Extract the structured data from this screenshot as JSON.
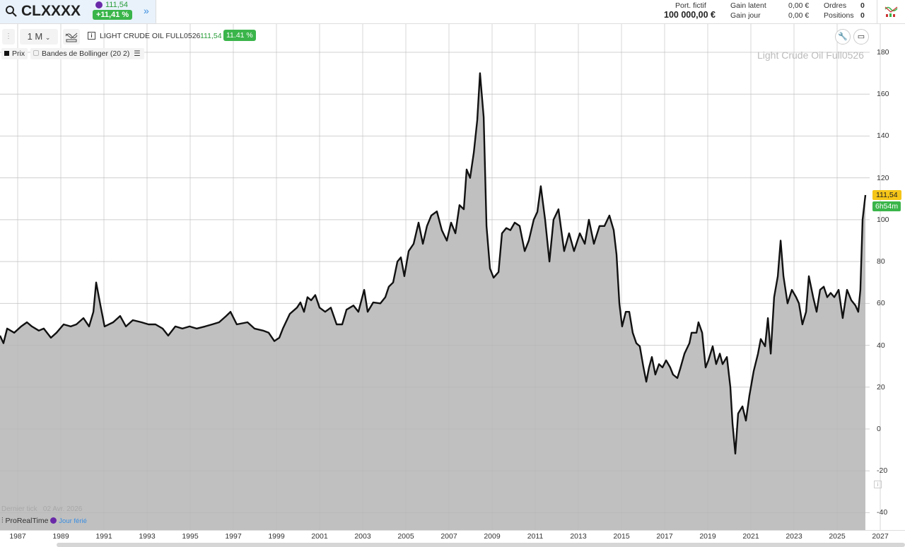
{
  "header": {
    "symbol": "CLXXXX",
    "price": "111,54",
    "change": "+11,41 %",
    "portfolio_label": "Port. fictif",
    "portfolio_value": "100 000,00 €",
    "gain_latent_label": "Gain latent",
    "gain_latent_value": "0,00 €",
    "gain_jour_label": "Gain jour",
    "gain_jour_value": "0,00 €",
    "ordres_label": "Ordres",
    "ordres_value": "0",
    "positions_label": "Positions",
    "positions_value": "0"
  },
  "chart_toolbar": {
    "period": "1 M",
    "instrument": "LIGHT CRUDE OIL FULL0526",
    "price": "111,54",
    "change": "11.41 %"
  },
  "legend": {
    "items": [
      "Prix",
      "Bandes de Bollinger (20 2)"
    ]
  },
  "watermark": "Light Crude Oil Full0526",
  "footer": {
    "last_tick_label": "Dernier tick",
    "last_tick_date": "02 Avr. 2026",
    "brand": "ProRealTime",
    "holiday": "Jour férié"
  },
  "price_tag": {
    "value": "111,54",
    "countdown": "6h54m"
  },
  "colors": {
    "line": "#111111",
    "fill": "#c0c0c0",
    "up": "#3ab54a",
    "tag": "#f5c518"
  },
  "chart_data": {
    "type": "area",
    "title": "Light Crude Oil Full0526",
    "xlim": [
      1986.18,
      2027.3
    ],
    "ylim": [
      -47,
      191
    ],
    "x_ticks": [
      "1987",
      "1989",
      "1991",
      "1993",
      "1995",
      "1997",
      "1999",
      "2001",
      "2003",
      "2005",
      "2007",
      "2009",
      "2011",
      "2013",
      "2015",
      "2017",
      "2019",
      "2021",
      "2023",
      "2025",
      "2027"
    ],
    "y_ticks": [
      180,
      160,
      140,
      120,
      100,
      80,
      60,
      40,
      20,
      0,
      -20,
      -40
    ],
    "grid": true,
    "points": [
      [
        1986.18,
        44.6
      ],
      [
        1986.34,
        41
      ],
      [
        1986.51,
        48
      ],
      [
        1986.84,
        46
      ],
      [
        1987.16,
        49
      ],
      [
        1987.43,
        51
      ],
      [
        1987.66,
        49
      ],
      [
        1987.98,
        47
      ],
      [
        1988.21,
        48
      ],
      [
        1988.54,
        43.6
      ],
      [
        1988.8,
        46
      ],
      [
        1989.13,
        50
      ],
      [
        1989.46,
        49
      ],
      [
        1989.72,
        50
      ],
      [
        1990.05,
        53
      ],
      [
        1990.31,
        49
      ],
      [
        1990.51,
        56
      ],
      [
        1990.64,
        70
      ],
      [
        1990.84,
        59
      ],
      [
        1991.03,
        49
      ],
      [
        1991.43,
        51
      ],
      [
        1991.75,
        54
      ],
      [
        1992.02,
        49
      ],
      [
        1992.34,
        52
      ],
      [
        1992.74,
        51
      ],
      [
        1993.07,
        50
      ],
      [
        1993.39,
        50
      ],
      [
        1993.72,
        48
      ],
      [
        1993.98,
        44.6
      ],
      [
        1994.31,
        49
      ],
      [
        1994.64,
        48
      ],
      [
        1994.97,
        49
      ],
      [
        1995.3,
        48
      ],
      [
        1995.69,
        49
      ],
      [
        1996.02,
        50
      ],
      [
        1996.34,
        51
      ],
      [
        1996.67,
        54
      ],
      [
        1996.87,
        56
      ],
      [
        1997.16,
        50
      ],
      [
        1997.66,
        51
      ],
      [
        1997.98,
        48
      ],
      [
        1998.38,
        47
      ],
      [
        1998.64,
        46
      ],
      [
        1998.9,
        42
      ],
      [
        1999.13,
        43.6
      ],
      [
        1999.3,
        48
      ],
      [
        1999.62,
        55
      ],
      [
        1999.95,
        58
      ],
      [
        2000.11,
        60.5
      ],
      [
        2000.28,
        56
      ],
      [
        2000.44,
        63
      ],
      [
        2000.61,
        61.5
      ],
      [
        2000.8,
        64
      ],
      [
        2001.0,
        58
      ],
      [
        2001.26,
        56
      ],
      [
        2001.52,
        58
      ],
      [
        2001.79,
        50
      ],
      [
        2002.05,
        50
      ],
      [
        2002.25,
        57
      ],
      [
        2002.57,
        59
      ],
      [
        2002.8,
        56
      ],
      [
        2003.07,
        66.5
      ],
      [
        2003.23,
        56
      ],
      [
        2003.49,
        60.5
      ],
      [
        2003.82,
        60
      ],
      [
        2004.05,
        63
      ],
      [
        2004.21,
        68
      ],
      [
        2004.41,
        70
      ],
      [
        2004.61,
        80
      ],
      [
        2004.77,
        82
      ],
      [
        2004.93,
        73
      ],
      [
        2005.13,
        85
      ],
      [
        2005.36,
        88.5
      ],
      [
        2005.59,
        98.6
      ],
      [
        2005.79,
        88.5
      ],
      [
        2005.98,
        97
      ],
      [
        2006.18,
        102
      ],
      [
        2006.44,
        104
      ],
      [
        2006.67,
        95
      ],
      [
        2006.9,
        90
      ],
      [
        2007.1,
        98.6
      ],
      [
        2007.3,
        93.5
      ],
      [
        2007.49,
        107
      ],
      [
        2007.69,
        105
      ],
      [
        2007.82,
        124
      ],
      [
        2007.98,
        120
      ],
      [
        2008.15,
        132
      ],
      [
        2008.31,
        147.6
      ],
      [
        2008.44,
        170
      ],
      [
        2008.61,
        149
      ],
      [
        2008.74,
        97
      ],
      [
        2008.9,
        76.7
      ],
      [
        2009.07,
        72.3
      ],
      [
        2009.3,
        75
      ],
      [
        2009.46,
        93.5
      ],
      [
        2009.66,
        96
      ],
      [
        2009.85,
        95
      ],
      [
        2010.05,
        98.6
      ],
      [
        2010.28,
        97
      ],
      [
        2010.51,
        85
      ],
      [
        2010.7,
        90
      ],
      [
        2010.93,
        100
      ],
      [
        2011.1,
        103.7
      ],
      [
        2011.26,
        116
      ],
      [
        2011.46,
        100
      ],
      [
        2011.66,
        80
      ],
      [
        2011.85,
        100
      ],
      [
        2012.08,
        105
      ],
      [
        2012.34,
        85
      ],
      [
        2012.57,
        93.5
      ],
      [
        2012.8,
        85
      ],
      [
        2013.07,
        93.5
      ],
      [
        2013.3,
        88.5
      ],
      [
        2013.49,
        100
      ],
      [
        2013.72,
        88.5
      ],
      [
        2013.98,
        97
      ],
      [
        2014.21,
        97
      ],
      [
        2014.44,
        102
      ],
      [
        2014.64,
        95
      ],
      [
        2014.77,
        83.4
      ],
      [
        2014.9,
        60
      ],
      [
        2015.03,
        49
      ],
      [
        2015.2,
        56
      ],
      [
        2015.36,
        56
      ],
      [
        2015.52,
        46
      ],
      [
        2015.69,
        41
      ],
      [
        2015.85,
        39.5
      ],
      [
        2016.02,
        29.4
      ],
      [
        2016.15,
        22.6
      ],
      [
        2016.28,
        29.4
      ],
      [
        2016.41,
        34.4
      ],
      [
        2016.57,
        26
      ],
      [
        2016.74,
        31
      ],
      [
        2016.9,
        29.4
      ],
      [
        2017.07,
        32.8
      ],
      [
        2017.26,
        29.4
      ],
      [
        2017.39,
        26
      ],
      [
        2017.59,
        24.3
      ],
      [
        2017.72,
        28.7
      ],
      [
        2017.92,
        36
      ],
      [
        2018.15,
        41
      ],
      [
        2018.25,
        46
      ],
      [
        2018.48,
        46
      ],
      [
        2018.57,
        51
      ],
      [
        2018.74,
        46
      ],
      [
        2018.9,
        29.4
      ],
      [
        2019.03,
        32.8
      ],
      [
        2019.23,
        39.5
      ],
      [
        2019.39,
        31
      ],
      [
        2019.56,
        36
      ],
      [
        2019.69,
        31
      ],
      [
        2019.89,
        34.4
      ],
      [
        2020.05,
        20
      ],
      [
        2020.15,
        2.4
      ],
      [
        2020.28,
        -11.8
      ],
      [
        2020.41,
        7.4
      ],
      [
        2020.61,
        10.8
      ],
      [
        2020.77,
        4
      ],
      [
        2020.93,
        15.9
      ],
      [
        2021.13,
        27.7
      ],
      [
        2021.33,
        36
      ],
      [
        2021.46,
        43
      ],
      [
        2021.66,
        39.5
      ],
      [
        2021.79,
        53
      ],
      [
        2021.92,
        36
      ],
      [
        2022.08,
        63
      ],
      [
        2022.25,
        73
      ],
      [
        2022.38,
        90
      ],
      [
        2022.51,
        73
      ],
      [
        2022.7,
        60
      ],
      [
        2022.9,
        66.5
      ],
      [
        2023.1,
        63
      ],
      [
        2023.23,
        60
      ],
      [
        2023.39,
        50
      ],
      [
        2023.56,
        56
      ],
      [
        2023.69,
        73
      ],
      [
        2023.89,
        63
      ],
      [
        2024.05,
        56
      ],
      [
        2024.21,
        66.5
      ],
      [
        2024.38,
        68
      ],
      [
        2024.54,
        63
      ],
      [
        2024.7,
        65
      ],
      [
        2024.87,
        63
      ],
      [
        2025.07,
        66.5
      ],
      [
        2025.26,
        53
      ],
      [
        2025.46,
        66.5
      ],
      [
        2025.66,
        61.5
      ],
      [
        2025.85,
        59
      ],
      [
        2025.98,
        56
      ],
      [
        2026.08,
        66.5
      ],
      [
        2026.18,
        100
      ],
      [
        2026.31,
        111.8
      ]
    ]
  }
}
